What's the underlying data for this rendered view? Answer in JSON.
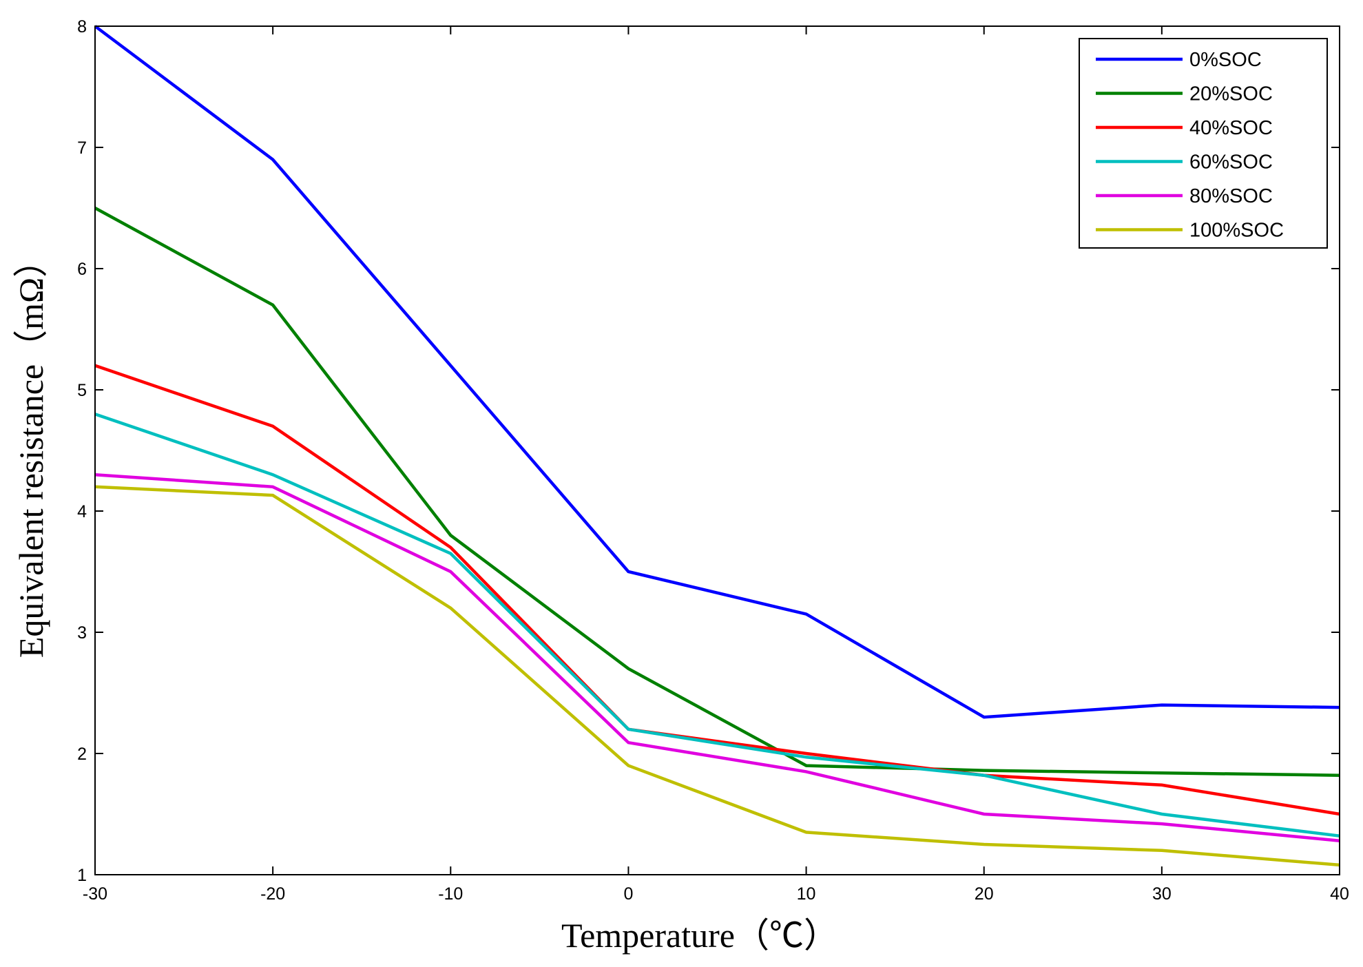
{
  "chart_data": {
    "type": "line",
    "title": "",
    "xlabel": "Temperature（℃）",
    "ylabel": "Equivalent resistance（mΩ）",
    "xlim": [
      -30,
      40
    ],
    "ylim": [
      1,
      8
    ],
    "xticks": [
      -30,
      -20,
      -10,
      0,
      10,
      20,
      30,
      40
    ],
    "yticks": [
      1,
      2,
      3,
      4,
      5,
      6,
      7,
      8
    ],
    "grid": false,
    "legend_position": "top-right",
    "x": [
      -30,
      -20,
      -10,
      0,
      10,
      20,
      30,
      40
    ],
    "series": [
      {
        "name": "0%SOC",
        "color": "#0000ff",
        "values": [
          8.0,
          6.9,
          5.2,
          3.5,
          3.15,
          2.3,
          2.4,
          2.38
        ]
      },
      {
        "name": "20%SOC",
        "color": "#008000",
        "values": [
          6.5,
          5.7,
          3.8,
          2.7,
          1.9,
          1.86,
          1.84,
          1.82
        ]
      },
      {
        "name": "40%SOC",
        "color": "#ff0000",
        "values": [
          5.2,
          4.7,
          3.7,
          2.2,
          2.0,
          1.82,
          1.74,
          1.5
        ]
      },
      {
        "name": "60%SOC",
        "color": "#00bfbf",
        "values": [
          4.8,
          4.3,
          3.65,
          2.2,
          1.97,
          1.82,
          1.5,
          1.32
        ]
      },
      {
        "name": "80%SOC",
        "color": "#e000e0",
        "values": [
          4.3,
          4.2,
          3.5,
          2.09,
          1.85,
          1.5,
          1.42,
          1.28
        ]
      },
      {
        "name": "100%SOC",
        "color": "#bfbf00",
        "values": [
          4.2,
          4.13,
          3.2,
          1.9,
          1.35,
          1.25,
          1.2,
          1.08
        ]
      }
    ]
  }
}
